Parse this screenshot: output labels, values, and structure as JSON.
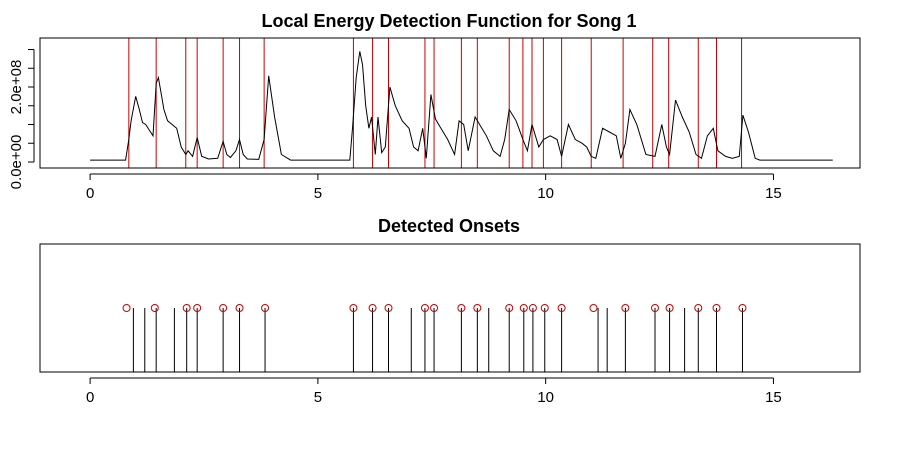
{
  "chart_data": [
    {
      "type": "line",
      "title": "Local Energy Detection Function for Song 1",
      "xlabel": "",
      "ylabel": "",
      "xlim": [
        -1.1,
        16.9
      ],
      "ylim": [
        0,
        320000000
      ],
      "x_ticks": [
        0,
        5,
        10,
        15
      ],
      "x_tick_labels": [
        "0",
        "5",
        "10",
        "15"
      ],
      "y_ticks": [
        0,
        50000000,
        100000000,
        150000000,
        200000000,
        250000000,
        300000000
      ],
      "y_tick_labels": [
        "0.0e+00",
        "",
        "",
        "",
        "2.0e+08",
        "",
        ""
      ],
      "grid": false,
      "legend": "none",
      "line_color": "#000000",
      "marker_color": "#cc0000",
      "energy": {
        "x": [
          0,
          0.78,
          0.85,
          0.9,
          1.0,
          1.08,
          1.15,
          1.22,
          1.3,
          1.38,
          1.45,
          1.5,
          1.55,
          1.62,
          1.7,
          1.8,
          1.9,
          2.0,
          2.1,
          2.15,
          2.25,
          2.35,
          2.45,
          2.6,
          2.8,
          2.92,
          3.0,
          3.08,
          3.2,
          3.28,
          3.36,
          3.45,
          3.7,
          3.82,
          3.92,
          4.05,
          4.2,
          4.4,
          5.7,
          5.76,
          5.84,
          5.92,
          5.98,
          6.05,
          6.12,
          6.18,
          6.26,
          6.32,
          6.4,
          6.48,
          6.58,
          6.7,
          6.85,
          7.0,
          7.1,
          7.2,
          7.3,
          7.38,
          7.48,
          7.58,
          7.7,
          7.85,
          8.0,
          8.1,
          8.2,
          8.3,
          8.45,
          8.55,
          8.7,
          8.85,
          9.0,
          9.1,
          9.2,
          9.35,
          9.5,
          9.6,
          9.7,
          9.85,
          9.95,
          10.1,
          10.25,
          10.35,
          10.5,
          10.65,
          10.8,
          10.9,
          11.0,
          11.1,
          11.25,
          11.4,
          11.55,
          11.65,
          11.75,
          11.85,
          12.0,
          12.2,
          12.4,
          12.55,
          12.65,
          12.72,
          12.85,
          13.0,
          13.15,
          13.3,
          13.42,
          13.55,
          13.68,
          13.78,
          13.95,
          14.1,
          14.25,
          14.33,
          14.45,
          14.6,
          14.7,
          14.8,
          16.3
        ],
        "y": [
          5000000,
          5000000,
          60000000,
          110000000,
          175000000,
          140000000,
          105000000,
          100000000,
          85000000,
          70000000,
          210000000,
          225000000,
          190000000,
          140000000,
          110000000,
          100000000,
          90000000,
          40000000,
          20000000,
          30000000,
          15000000,
          65000000,
          15000000,
          8000000,
          10000000,
          55000000,
          20000000,
          12000000,
          30000000,
          60000000,
          20000000,
          8000000,
          7000000,
          60000000,
          230000000,
          120000000,
          20000000,
          5000000,
          5000000,
          90000000,
          225000000,
          295000000,
          260000000,
          150000000,
          90000000,
          120000000,
          20000000,
          120000000,
          25000000,
          40000000,
          200000000,
          150000000,
          110000000,
          90000000,
          40000000,
          30000000,
          90000000,
          10000000,
          180000000,
          115000000,
          90000000,
          60000000,
          20000000,
          110000000,
          100000000,
          30000000,
          120000000,
          100000000,
          70000000,
          30000000,
          15000000,
          60000000,
          140000000,
          110000000,
          60000000,
          30000000,
          100000000,
          40000000,
          60000000,
          70000000,
          60000000,
          15000000,
          100000000,
          60000000,
          50000000,
          40000000,
          15000000,
          10000000,
          90000000,
          80000000,
          70000000,
          10000000,
          50000000,
          140000000,
          100000000,
          20000000,
          15000000,
          100000000,
          40000000,
          20000000,
          165000000,
          120000000,
          80000000,
          20000000,
          10000000,
          70000000,
          90000000,
          30000000,
          15000000,
          10000000,
          15000000,
          125000000,
          80000000,
          10000000,
          5000000,
          5000000,
          5000000
        ]
      },
      "onset_markers_x": [
        0.85,
        1.45,
        2.1,
        2.35,
        2.92,
        3.28,
        3.82,
        5.78,
        6.2,
        6.55,
        7.35,
        7.55,
        8.15,
        8.5,
        9.2,
        9.5,
        9.7,
        9.95,
        10.35,
        11.0,
        11.7,
        12.35,
        12.7,
        13.35,
        13.75,
        14.3
      ]
    },
    {
      "type": "scatter",
      "title": "Detected Onsets",
      "xlabel": "",
      "ylabel": "",
      "xlim": [
        -1.1,
        16.9
      ],
      "x_ticks": [
        0,
        5,
        10,
        15
      ],
      "x_tick_labels": [
        "0",
        "5",
        "10",
        "15"
      ],
      "grid": false,
      "legend": "none",
      "onsets_circles_x": [
        0.8,
        1.42,
        2.12,
        2.35,
        2.92,
        3.28,
        3.84,
        5.78,
        6.2,
        6.55,
        7.35,
        7.55,
        8.15,
        8.5,
        9.2,
        9.52,
        9.72,
        9.98,
        10.35,
        11.05,
        11.75,
        12.4,
        12.72,
        13.35,
        13.75,
        14.32
      ],
      "onsets_stems_x": [
        0.95,
        1.2,
        1.45,
        1.85,
        2.12,
        2.35,
        2.92,
        3.28,
        3.84,
        5.78,
        6.2,
        6.55,
        7.05,
        7.35,
        7.55,
        8.15,
        8.5,
        8.75,
        9.2,
        9.52,
        9.72,
        9.98,
        10.35,
        11.15,
        11.35,
        11.75,
        12.4,
        12.72,
        13.05,
        13.35,
        13.75,
        14.32
      ],
      "circle_color": "#cc0000",
      "stem_color": "#000000"
    }
  ]
}
